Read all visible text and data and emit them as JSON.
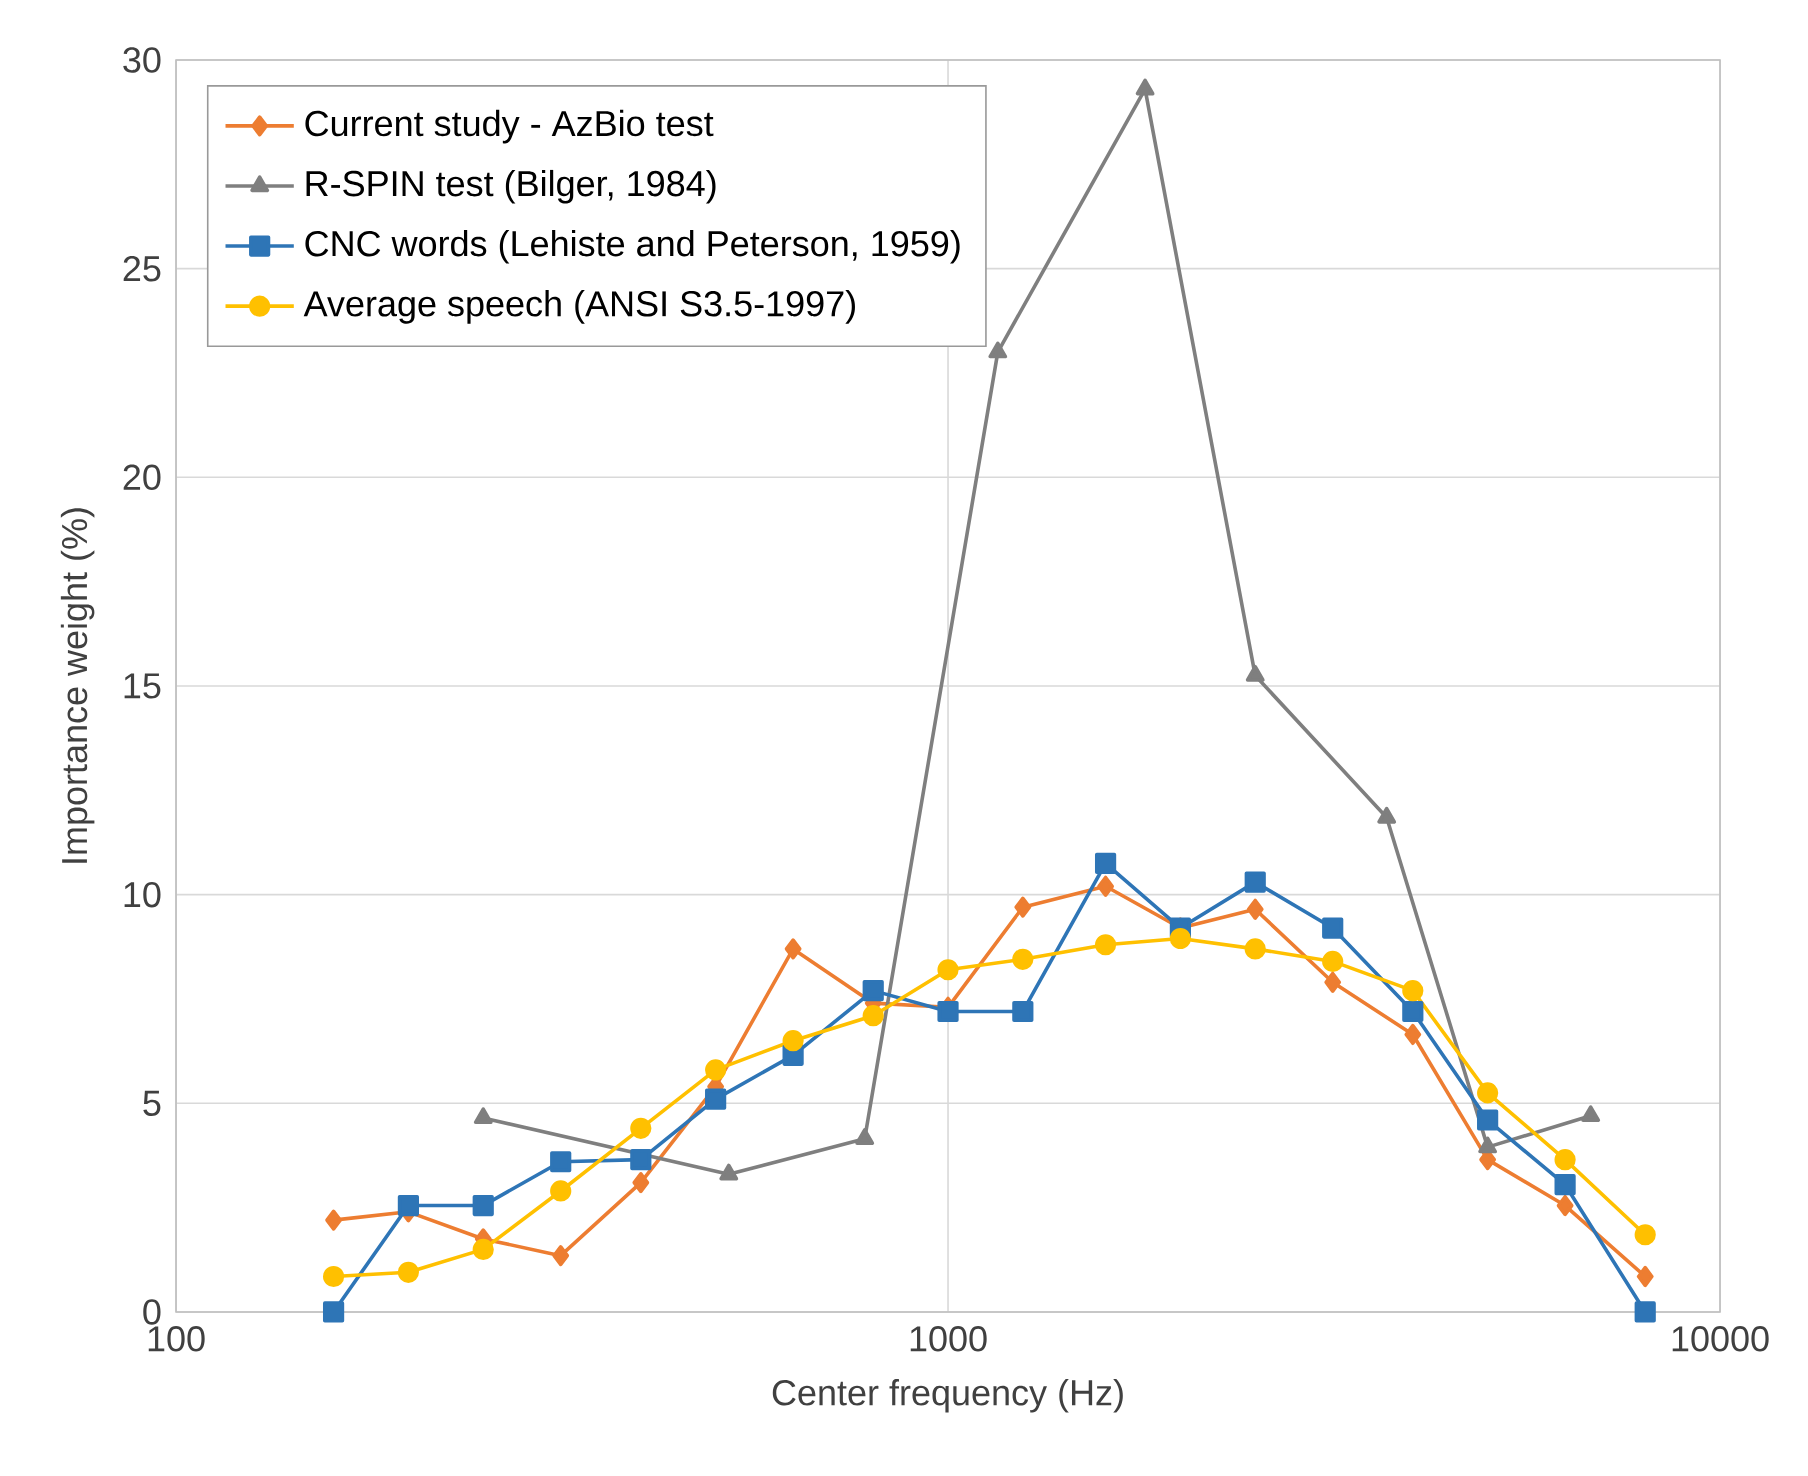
{
  "chart_data": {
    "type": "line",
    "xlabel": "Center frequency (Hz)",
    "ylabel": "Importance weight (%)",
    "log": "x",
    "xlim": [
      100,
      10000
    ],
    "xticks": [
      100,
      1000,
      10000
    ],
    "ylim": [
      0,
      30
    ],
    "yticks": [
      0,
      5,
      10,
      15,
      20,
      25,
      30
    ],
    "grid": true,
    "legend": "top left",
    "line_style": "solid",
    "series": [
      {
        "name": "Current study - AzBio test",
        "color": "#ed7d31",
        "marker": "diamond",
        "x": [
          160,
          200,
          250,
          315,
          400,
          500,
          630,
          800,
          1000,
          1250,
          1600,
          2000,
          2500,
          3150,
          4000,
          5000,
          6300,
          8000
        ],
        "values": [
          2.2,
          2.4,
          1.75,
          1.35,
          3.1,
          5.4,
          8.7,
          7.4,
          7.3,
          9.7,
          10.2,
          9.2,
          9.65,
          7.9,
          6.65,
          3.65,
          2.55,
          0.85
        ]
      },
      {
        "name": "R-SPIN test (Bilger, 1984)",
        "color": "#7f7f7f",
        "marker": "triangle",
        "x": [
          250,
          520,
          780,
          1160,
          1800,
          2500,
          3700,
          5000,
          6800
        ],
        "values": [
          4.65,
          3.3,
          4.15,
          23.0,
          29.3,
          15.25,
          11.85,
          3.95,
          4.7
        ]
      },
      {
        "name": "CNC words (Lehiste and Peterson, 1959)",
        "color": "#2e75b6",
        "marker": "square",
        "x": [
          160,
          200,
          250,
          315,
          400,
          500,
          630,
          800,
          1000,
          1250,
          1600,
          2000,
          2500,
          3150,
          4000,
          5000,
          6300,
          8000
        ],
        "values": [
          0,
          2.55,
          2.55,
          3.6,
          3.65,
          5.1,
          6.15,
          7.7,
          7.2,
          7.2,
          10.75,
          9.2,
          10.3,
          9.2,
          7.2,
          4.6,
          3.05,
          0
        ]
      },
      {
        "name": "Average speech (ANSI S3.5-1997)",
        "color": "#ffc000",
        "marker": "circle",
        "x": [
          160,
          200,
          250,
          315,
          400,
          500,
          630,
          800,
          1000,
          1250,
          1600,
          2000,
          2500,
          3150,
          4000,
          5000,
          6300,
          8000
        ],
        "values": [
          0.85,
          0.95,
          1.5,
          2.9,
          4.4,
          5.8,
          6.5,
          7.1,
          8.2,
          8.45,
          8.8,
          8.95,
          8.7,
          8.4,
          7.7,
          5.25,
          3.65,
          1.85
        ]
      }
    ]
  }
}
